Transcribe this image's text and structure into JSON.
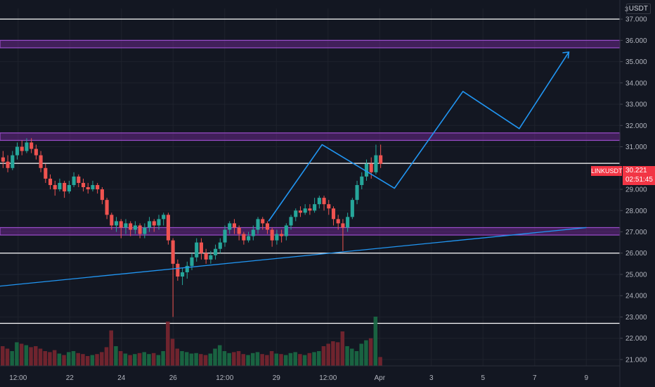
{
  "symbol": "LINKUSDT",
  "currency": "USDT",
  "scale_hint": "3",
  "last_price": "30.221",
  "countdown": "02:51:45",
  "colors": {
    "background": "#131722",
    "up": "#26a69a",
    "down": "#ef5350",
    "zone": "#7b2ba0",
    "drawing": "#2196f3",
    "level": "#ffffff"
  },
  "chart_data": {
    "type": "candlestick",
    "x_ticks": [
      "12:00",
      "22",
      "24",
      "26",
      "12:00",
      "29",
      "12:00",
      "Apr",
      "3",
      "5",
      "7",
      "9"
    ],
    "y_ticks": [
      "37.000",
      "36.000",
      "35.000",
      "34.000",
      "33.000",
      "32.000",
      "31.000",
      "29.000",
      "28.000",
      "27.000",
      "26.000",
      "25.000",
      "24.000",
      "23.000",
      "22.000",
      "21.000"
    ],
    "ylim": [
      20.7,
      37.5
    ],
    "horizontal_levels": [
      37.0,
      30.221,
      26.0,
      22.7
    ],
    "zones": [
      [
        35.65,
        36.0
      ],
      [
        31.3,
        31.65
      ],
      [
        26.85,
        27.2
      ]
    ],
    "projection_path": [
      [
        27.5,
        0.4333
      ],
      [
        31.1,
        0.5196
      ],
      [
        29.05,
        0.6364
      ],
      [
        33.6,
        0.7468
      ],
      [
        31.85,
        0.8377
      ],
      [
        35.45,
        0.9177
      ]
    ],
    "trend_line": [
      [
        24.45,
        0.0
      ],
      [
        27.2,
        0.9459
      ]
    ],
    "candles": [
      [
        30.5,
        30.3,
        30.8,
        30.0
      ],
      [
        30.3,
        30.0,
        30.6,
        29.8
      ],
      [
        30.0,
        30.6,
        30.8,
        29.9
      ],
      [
        30.6,
        31.0,
        31.2,
        30.4
      ],
      [
        31.0,
        30.8,
        31.3,
        30.6
      ],
      [
        30.8,
        31.2,
        31.4,
        30.7
      ],
      [
        31.2,
        30.9,
        31.4,
        30.7
      ],
      [
        30.9,
        30.6,
        31.1,
        30.4
      ],
      [
        30.6,
        30.0,
        30.8,
        29.8
      ],
      [
        30.0,
        29.5,
        30.2,
        29.3
      ],
      [
        29.5,
        29.2,
        29.7,
        29.0
      ],
      [
        29.2,
        29.0,
        29.4,
        28.7
      ],
      [
        29.0,
        29.3,
        29.5,
        28.9
      ],
      [
        29.3,
        28.9,
        29.4,
        28.6
      ],
      [
        28.9,
        29.2,
        29.4,
        28.8
      ],
      [
        29.2,
        29.6,
        29.8,
        29.1
      ],
      [
        29.6,
        29.3,
        29.7,
        29.1
      ],
      [
        29.3,
        29.1,
        29.5,
        28.9
      ],
      [
        29.1,
        29.0,
        29.3,
        28.8
      ],
      [
        29.0,
        29.2,
        29.4,
        28.9
      ],
      [
        29.2,
        29.0,
        29.3,
        28.8
      ],
      [
        29.0,
        28.5,
        29.1,
        28.3
      ],
      [
        28.5,
        27.8,
        28.6,
        27.6
      ],
      [
        27.8,
        27.3,
        27.9,
        27.1
      ],
      [
        27.3,
        27.5,
        27.7,
        27.0
      ],
      [
        27.5,
        27.2,
        27.6,
        26.7
      ],
      [
        27.2,
        27.4,
        27.6,
        26.9
      ],
      [
        27.4,
        27.1,
        27.5,
        26.8
      ],
      [
        27.1,
        27.3,
        27.5,
        26.9
      ],
      [
        27.3,
        26.9,
        27.4,
        26.7
      ],
      [
        26.9,
        27.2,
        27.4,
        26.7
      ],
      [
        27.2,
        27.5,
        27.7,
        27.0
      ],
      [
        27.5,
        27.3,
        27.6,
        27.0
      ],
      [
        27.3,
        27.6,
        27.8,
        27.1
      ],
      [
        27.6,
        27.8,
        27.9,
        27.3
      ],
      [
        27.8,
        26.6,
        27.9,
        26.4
      ],
      [
        26.6,
        25.5,
        26.7,
        23.0
      ],
      [
        25.5,
        24.9,
        25.7,
        24.7
      ],
      [
        24.9,
        25.1,
        25.3,
        24.5
      ],
      [
        25.1,
        25.4,
        25.6,
        24.8
      ],
      [
        25.4,
        25.8,
        26.0,
        25.2
      ],
      [
        25.8,
        26.5,
        26.7,
        25.6
      ],
      [
        26.5,
        26.0,
        26.7,
        25.7
      ],
      [
        26.0,
        25.7,
        26.2,
        25.5
      ],
      [
        25.7,
        25.9,
        26.1,
        25.5
      ],
      [
        25.9,
        26.2,
        26.4,
        25.7
      ],
      [
        26.2,
        26.5,
        26.7,
        26.0
      ],
      [
        26.5,
        27.1,
        27.3,
        26.3
      ],
      [
        27.1,
        27.4,
        27.5,
        26.9
      ],
      [
        27.4,
        27.2,
        27.6,
        26.9
      ],
      [
        27.2,
        26.9,
        27.3,
        26.6
      ],
      [
        26.9,
        26.6,
        27.0,
        26.4
      ],
      [
        26.6,
        26.8,
        27.0,
        26.5
      ],
      [
        26.8,
        27.1,
        27.3,
        26.6
      ],
      [
        27.1,
        27.6,
        27.7,
        26.9
      ],
      [
        27.6,
        27.4,
        27.7,
        27.1
      ],
      [
        27.4,
        27.1,
        27.5,
        26.9
      ],
      [
        27.1,
        26.6,
        27.2,
        26.3
      ],
      [
        26.6,
        26.9,
        27.1,
        26.4
      ],
      [
        26.9,
        26.8,
        27.1,
        26.5
      ],
      [
        26.8,
        27.3,
        27.4,
        26.6
      ],
      [
        27.3,
        27.7,
        27.8,
        27.1
      ],
      [
        27.7,
        28.0,
        28.1,
        27.5
      ],
      [
        28.0,
        27.9,
        28.2,
        27.7
      ],
      [
        27.9,
        28.1,
        28.3,
        27.8
      ],
      [
        28.1,
        28.0,
        28.3,
        27.8
      ],
      [
        28.0,
        28.3,
        28.6,
        27.9
      ],
      [
        28.3,
        28.6,
        28.7,
        28.1
      ],
      [
        28.6,
        28.3,
        28.7,
        28.0
      ],
      [
        28.3,
        28.1,
        28.5,
        27.8
      ],
      [
        28.1,
        27.6,
        28.2,
        27.3
      ],
      [
        27.6,
        27.4,
        27.8,
        27.1
      ],
      [
        27.4,
        27.2,
        27.6,
        26.1
      ],
      [
        27.2,
        27.7,
        27.9,
        27.0
      ],
      [
        27.7,
        28.5,
        28.6,
        27.6
      ],
      [
        28.5,
        29.2,
        29.4,
        28.3
      ],
      [
        29.2,
        29.6,
        29.8,
        29.0
      ],
      [
        29.6,
        30.2,
        30.4,
        29.4
      ],
      [
        30.2,
        29.8,
        30.5,
        29.5
      ],
      [
        29.8,
        30.6,
        31.1,
        29.7
      ],
      [
        30.6,
        30.2,
        31.1,
        30.0
      ]
    ],
    "volumes": [
      40,
      35,
      30,
      48,
      45,
      42,
      38,
      40,
      35,
      30,
      28,
      32,
      25,
      22,
      28,
      30,
      26,
      24,
      20,
      22,
      24,
      28,
      38,
      72,
      40,
      30,
      25,
      22,
      24,
      26,
      28,
      24,
      26,
      22,
      30,
      90,
      55,
      35,
      30,
      28,
      25,
      26,
      24,
      22,
      25,
      35,
      42,
      30,
      26,
      28,
      30,
      24,
      22,
      26,
      28,
      24,
      22,
      30,
      25,
      24,
      22,
      26,
      28,
      24,
      22,
      26,
      28,
      30,
      40,
      45,
      50,
      48,
      70,
      40,
      35,
      30,
      45,
      52,
      56,
      100,
      18
    ]
  }
}
